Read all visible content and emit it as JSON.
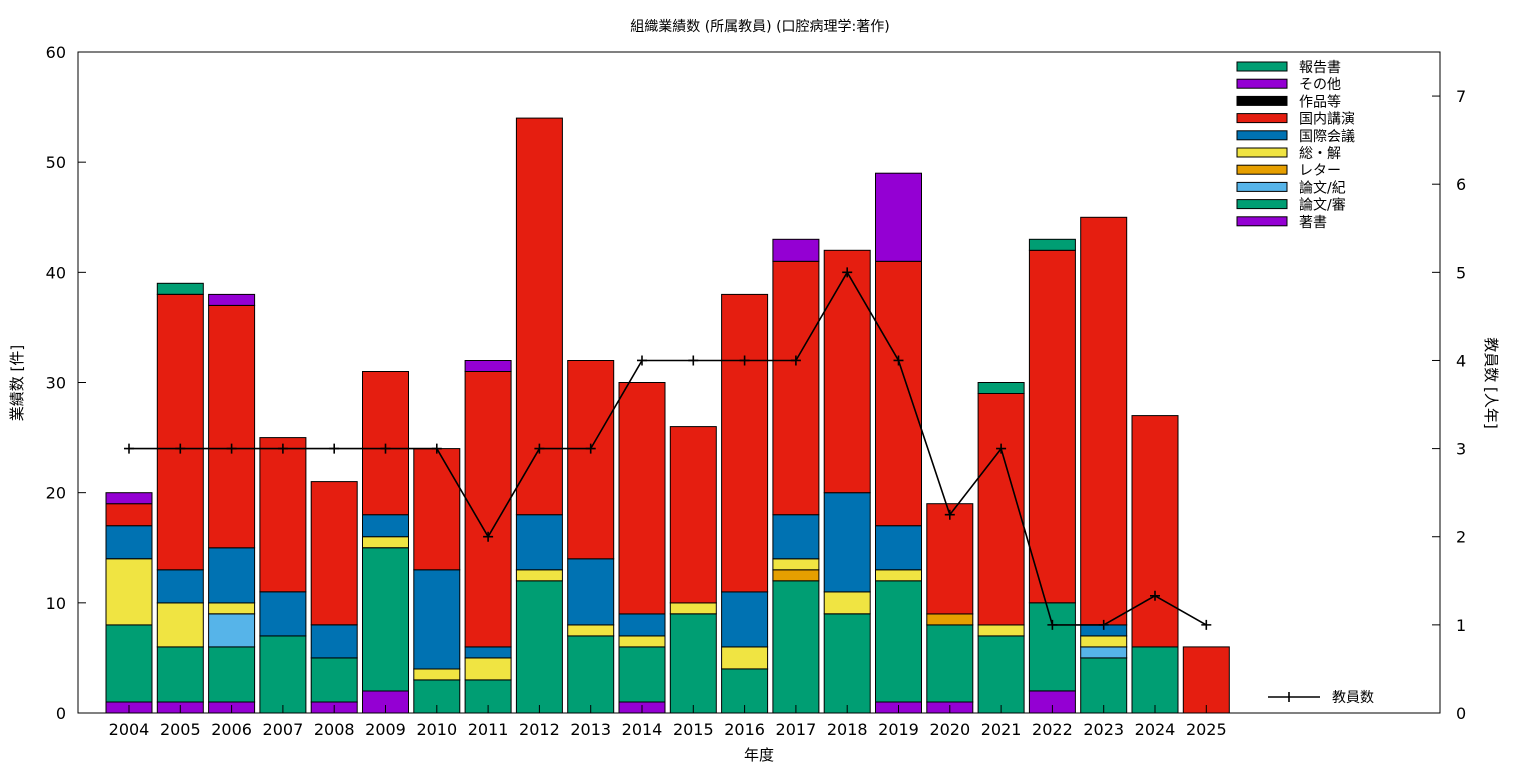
{
  "chart_data": {
    "type": "bar",
    "stacked": true,
    "title": "組織業績数 (所属教員) (口腔病理学:著作)",
    "xlabel": "年度",
    "ylabel": "業績数 [件]",
    "y2label": "教員数 [人年]",
    "ylim": [
      0,
      60
    ],
    "y2lim": [
      0,
      7.5
    ],
    "yticks": [
      "0",
      "10",
      "20",
      "30",
      "40",
      "50",
      "60"
    ],
    "y2ticks": [
      "0",
      "1",
      "2",
      "3",
      "4",
      "5",
      "6",
      "7"
    ],
    "legend_position": "top-right",
    "categories": [
      "2004",
      "2005",
      "2006",
      "2007",
      "2008",
      "2009",
      "2010",
      "2011",
      "2012",
      "2013",
      "2014",
      "2015",
      "2016",
      "2017",
      "2018",
      "2019",
      "2020",
      "2021",
      "2022",
      "2023",
      "2024",
      "2025"
    ],
    "series": [
      {
        "name": "著書",
        "color": "#9400d3",
        "values": [
          1,
          1,
          1,
          0,
          1,
          2,
          0,
          0,
          0,
          0,
          1,
          0,
          0,
          0,
          0,
          1,
          1,
          0,
          2,
          0,
          0,
          0
        ]
      },
      {
        "name": "論文/審",
        "color": "#009e73",
        "values": [
          7,
          5,
          5,
          7,
          4,
          13,
          3,
          3,
          12,
          7,
          5,
          9,
          4,
          12,
          9,
          11,
          7,
          7,
          8,
          5,
          6,
          0
        ]
      },
      {
        "name": "論文/紀",
        "color": "#56b4e9",
        "values": [
          0,
          0,
          3,
          0,
          0,
          0,
          0,
          0,
          0,
          0,
          0,
          0,
          0,
          0,
          0,
          0,
          0,
          0,
          0,
          1,
          0,
          0
        ]
      },
      {
        "name": "レター",
        "color": "#e69f00",
        "values": [
          0,
          0,
          0,
          0,
          0,
          0,
          0,
          0,
          0,
          0,
          0,
          0,
          0,
          1,
          0,
          0,
          1,
          0,
          0,
          0,
          0,
          0
        ]
      },
      {
        "name": "総・解",
        "color": "#f0e442",
        "values": [
          6,
          4,
          1,
          0,
          0,
          1,
          1,
          2,
          1,
          1,
          1,
          1,
          2,
          1,
          2,
          1,
          0,
          1,
          0,
          1,
          0,
          0
        ]
      },
      {
        "name": "国際会議",
        "color": "#0072b2",
        "values": [
          3,
          3,
          5,
          4,
          3,
          2,
          9,
          1,
          5,
          6,
          2,
          0,
          5,
          4,
          9,
          4,
          0,
          0,
          0,
          1,
          0,
          0
        ]
      },
      {
        "name": "国内講演",
        "color": "#e51e10",
        "values": [
          2,
          25,
          22,
          14,
          13,
          13,
          11,
          25,
          36,
          18,
          21,
          16,
          27,
          23,
          22,
          24,
          10,
          21,
          32,
          37,
          21,
          6
        ]
      },
      {
        "name": "作品等",
        "color": "#000000",
        "values": [
          0,
          0,
          0,
          0,
          0,
          0,
          0,
          0,
          0,
          0,
          0,
          0,
          0,
          0,
          0,
          0,
          0,
          0,
          0,
          0,
          0,
          0
        ]
      },
      {
        "name": "その他",
        "color": "#9400d3",
        "values": [
          1,
          0,
          1,
          0,
          0,
          0,
          0,
          1,
          0,
          0,
          0,
          0,
          0,
          2,
          0,
          8,
          0,
          0,
          0,
          0,
          0,
          0
        ]
      },
      {
        "name": "報告書",
        "color": "#009e73",
        "values": [
          0,
          1,
          0,
          0,
          0,
          0,
          0,
          0,
          0,
          0,
          0,
          0,
          0,
          0,
          0,
          0,
          0,
          1,
          1,
          0,
          0,
          0
        ]
      }
    ],
    "line": {
      "name": "教員数",
      "axis": "y2",
      "color": "#000000",
      "values": [
        3,
        3,
        3,
        3,
        3,
        3,
        3,
        2,
        3,
        3,
        4,
        4,
        4,
        4,
        5,
        4,
        2.25,
        3,
        1,
        1,
        1.33,
        1
      ]
    }
  }
}
